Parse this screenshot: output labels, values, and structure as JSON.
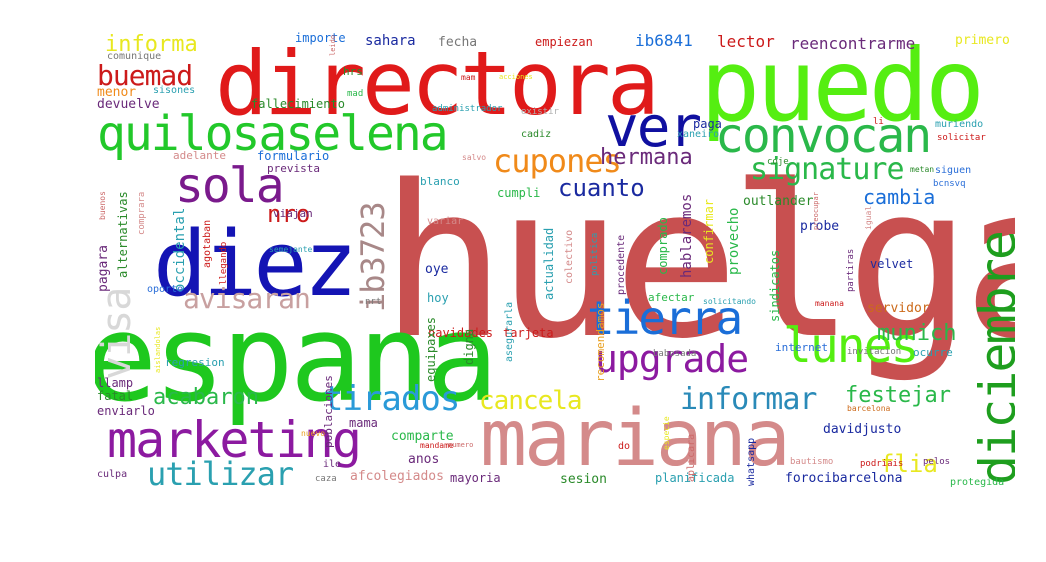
{
  "words": [
    {
      "text": "huelga",
      "color": "#c85050"
    },
    {
      "text": "espana",
      "color": "#1ec81e"
    },
    {
      "text": "directora",
      "color": "#e01a1a"
    },
    {
      "text": "puedo",
      "color": "#55ee11"
    },
    {
      "text": "mariana",
      "color": "#d48a8a"
    },
    {
      "text": "diez",
      "color": "#1414b4"
    },
    {
      "text": "diciembre",
      "color": "#1e9e1e"
    },
    {
      "text": "quilosaselena",
      "color": "#22c82a"
    },
    {
      "text": "marketing",
      "color": "#8c1aa0"
    },
    {
      "text": "convocan",
      "color": "#2ab84a"
    },
    {
      "text": "ver",
      "color": "#1010a0"
    },
    {
      "text": "sola",
      "color": "#7a1a8c"
    },
    {
      "text": "tierra",
      "color": "#1a6ed8"
    },
    {
      "text": "lunes",
      "color": "#55ee11"
    },
    {
      "text": "upgrade",
      "color": "#8c1aa0"
    },
    {
      "text": "visa",
      "color": "#d8d8d8"
    },
    {
      "text": "ib3723",
      "color": "#a88888"
    },
    {
      "text": "cupones",
      "color": "#f08a1a"
    },
    {
      "text": "signature",
      "color": "#2ab84a"
    },
    {
      "text": "tirados",
      "color": "#2a9ad8"
    },
    {
      "text": "informar",
      "color": "#2a8ab8"
    },
    {
      "text": "utilizar",
      "color": "#2aa0b0"
    },
    {
      "text": "cancela",
      "color": "#e8e820"
    },
    {
      "text": "avisaran",
      "color": "#c8a0a0"
    },
    {
      "text": "buemad",
      "color": "#cc1a1a"
    },
    {
      "text": "informa",
      "color": "#e8e820"
    },
    {
      "text": "hermana",
      "color": "#6a2a7a"
    },
    {
      "text": "cuanto",
      "color": "#1a2aa0"
    },
    {
      "text": "munich",
      "color": "#2ab84a"
    },
    {
      "text": "acabaron",
      "color": "#2ab84a"
    },
    {
      "text": "festejar",
      "color": "#2ab84a"
    },
    {
      "text": "flia",
      "color": "#e8e820"
    },
    {
      "text": "nro",
      "color": "#cc1a1a"
    },
    {
      "text": "cambia",
      "color": "#1a6ed8"
    },
    {
      "text": "reencontrarme",
      "color": "#6a2a7a"
    },
    {
      "text": "ib6841",
      "color": "#1a6ed8"
    },
    {
      "text": "lector",
      "color": "#cc1a1a"
    },
    {
      "text": "empiezan",
      "color": "#cc1a1a"
    },
    {
      "text": "sahara",
      "color": "#1a2aa0"
    },
    {
      "text": "fecha",
      "color": "#777777"
    },
    {
      "text": "importe",
      "color": "#1a6ed8"
    },
    {
      "text": "primero",
      "color": "#e8e820"
    },
    {
      "text": "comunique",
      "color": "#777777"
    },
    {
      "text": "menor",
      "color": "#f08a1a"
    },
    {
      "text": "sisones",
      "color": "#2aa0b0"
    },
    {
      "text": "devuelve",
      "color": "#6a2a7a"
    },
    {
      "text": "fallecimiento",
      "color": "#2a8a2a"
    },
    {
      "text": "administrador",
      "color": "#2aa0b0"
    },
    {
      "text": "existir",
      "color": "#b0b0b0"
    },
    {
      "text": "xaneiro",
      "color": "#2aa0b0"
    },
    {
      "text": "paga",
      "color": "#1a2aa0"
    },
    {
      "text": "cadiz",
      "color": "#2a8a2a"
    },
    {
      "text": "muriendo",
      "color": "#2aa0b0"
    },
    {
      "text": "solicitar",
      "color": "#cc1a1a"
    },
    {
      "text": "siguen",
      "color": "#2a6ed8"
    },
    {
      "text": "metan",
      "color": "#2a8a2a"
    },
    {
      "text": "bcnsvq",
      "color": "#2a6ed8"
    },
    {
      "text": "adelante",
      "color": "#d48a8a"
    },
    {
      "text": "formulario",
      "color": "#1a6ed8"
    },
    {
      "text": "prevista",
      "color": "#6a2a7a"
    },
    {
      "text": "viajan",
      "color": "#6a2a7a"
    },
    {
      "text": "blanco",
      "color": "#2aa0b0"
    },
    {
      "text": "cumpli",
      "color": "#2ab84a"
    },
    {
      "text": "coje",
      "color": "#2a8a2a"
    },
    {
      "text": "salvo",
      "color": "#d48a8a"
    },
    {
      "text": "probe",
      "color": "#1a2aa0"
    },
    {
      "text": "outlander",
      "color": "#2a8a2a"
    },
    {
      "text": "provecho",
      "color": "#2ab84a"
    },
    {
      "text": "velvet",
      "color": "#1a2aa0"
    },
    {
      "text": "sindicatos",
      "color": "#2ab84a"
    },
    {
      "text": "servidor",
      "color": "#cc6a1a"
    },
    {
      "text": "hablaremos",
      "color": "#6a2a7a"
    },
    {
      "text": "confirmar",
      "color": "#e8e820"
    },
    {
      "text": "comprado",
      "color": "#2ab84a"
    },
    {
      "text": "actualidad",
      "color": "#2aa0b0"
    },
    {
      "text": "colectivo",
      "color": "#d48a8a"
    },
    {
      "text": "politica",
      "color": "#2aa0b0"
    },
    {
      "text": "procedente",
      "color": "#6a2a7a"
    },
    {
      "text": "variar",
      "color": "#d48a8a"
    },
    {
      "text": "oye",
      "color": "#1a2aa0"
    },
    {
      "text": "hoy",
      "color": "#2aa0b0"
    },
    {
      "text": "afectar",
      "color": "#2ab84a"
    },
    {
      "text": "navidades",
      "color": "#cc1a1a"
    },
    {
      "text": "tarjeta",
      "color": "#cc1a1a"
    },
    {
      "text": "occidental",
      "color": "#2aa0b0"
    },
    {
      "text": "pagara",
      "color": "#6a2a7a"
    },
    {
      "text": "alternativas",
      "color": "#2a8a2a"
    },
    {
      "text": "comprara",
      "color": "#d48a8a"
    },
    {
      "text": "buenos",
      "color": "#cc6a6a"
    },
    {
      "text": "agotaban",
      "color": "#cc1a1a"
    },
    {
      "text": "llegando",
      "color": "#cc1a1a"
    },
    {
      "text": "semejante",
      "color": "#2aa0b0"
    },
    {
      "text": "oporto",
      "color": "#2a6ed8"
    },
    {
      "text": "regresion",
      "color": "#2aa0b0"
    },
    {
      "text": "poblaciones",
      "color": "#6a2a7a"
    },
    {
      "text": "equipaxes",
      "color": "#2a8a2a"
    },
    {
      "text": "digna",
      "color": "#2a8a2a"
    },
    {
      "text": "asegurarla",
      "color": "#2aa0b0"
    },
    {
      "text": "recomendamos",
      "color": "#e8a020"
    },
    {
      "text": "babosada",
      "color": "#777777"
    },
    {
      "text": "internet",
      "color": "#2a6ed8"
    },
    {
      "text": "invitacion",
      "color": "#777777"
    },
    {
      "text": "ocurre",
      "color": "#2aa0b0"
    },
    {
      "text": "llamp",
      "color": "#6a2a7a"
    },
    {
      "text": "fatal",
      "color": "#2a8a2a"
    },
    {
      "text": "enviarlo",
      "color": "#6a2a7a"
    },
    {
      "text": "mama",
      "color": "#6a2a7a"
    },
    {
      "text": "comparte",
      "color": "#2ab84a"
    },
    {
      "text": "davidjusto",
      "color": "#1a2aa0"
    },
    {
      "text": "anos",
      "color": "#6a2a7a"
    },
    {
      "text": "afcolegiados",
      "color": "#d48a8a"
    },
    {
      "text": "mayoria",
      "color": "#6a2a7a"
    },
    {
      "text": "sesion",
      "color": "#2a8a2a"
    },
    {
      "text": "planificada",
      "color": "#2aa0b0"
    },
    {
      "text": "forocibarcelona",
      "color": "#1a2aa0"
    },
    {
      "text": "whatsapp",
      "color": "#1a2aa0"
    },
    {
      "text": "protegida",
      "color": "#2ab84a"
    },
    {
      "text": "culpa",
      "color": "#6a2a7a"
    },
    {
      "text": "ile",
      "color": "#6a2a7a"
    },
    {
      "text": "caza",
      "color": "#777777"
    },
    {
      "text": "do",
      "color": "#cc1a1a"
    },
    {
      "text": "aplicara",
      "color": "#cc6a6a"
    },
    {
      "text": "bautismo",
      "color": "#d48a8a"
    },
    {
      "text": "podriais",
      "color": "#cc1a1a"
    },
    {
      "text": "pelos",
      "color": "#6a2a7a"
    },
    {
      "text": "barcelona",
      "color": "#cc6a1a"
    },
    {
      "text": "manana",
      "color": "#cc1a1a"
    },
    {
      "text": "solicitando",
      "color": "#2aa0b0"
    },
    {
      "text": "partiras",
      "color": "#6a2a7a"
    },
    {
      "text": "igual",
      "color": "#d48a8a"
    },
    {
      "text": "preocupar",
      "color": "#cc6a6a"
    },
    {
      "text": "nrt",
      "color": "#777777"
    },
    {
      "text": "hrs",
      "color": "#2a8a2a"
    },
    {
      "text": "mad",
      "color": "#2ab84a"
    },
    {
      "text": "mam",
      "color": "#cc1a1a"
    },
    {
      "text": "li",
      "color": "#cc1a1a"
    },
    {
      "text": "nuevo",
      "color": "#e8a020"
    },
    {
      "text": "mandame",
      "color": "#cc1a1a"
    },
    {
      "text": "numero",
      "color": "#cc6a6a"
    },
    {
      "text": "especie",
      "color": "#e8e820"
    },
    {
      "text": "acciones",
      "color": "#e8e820"
    },
    {
      "text": "leido",
      "color": "#cc6a6a"
    },
    {
      "text": "aislandolas",
      "color": "#e8e820"
    }
  ]
}
